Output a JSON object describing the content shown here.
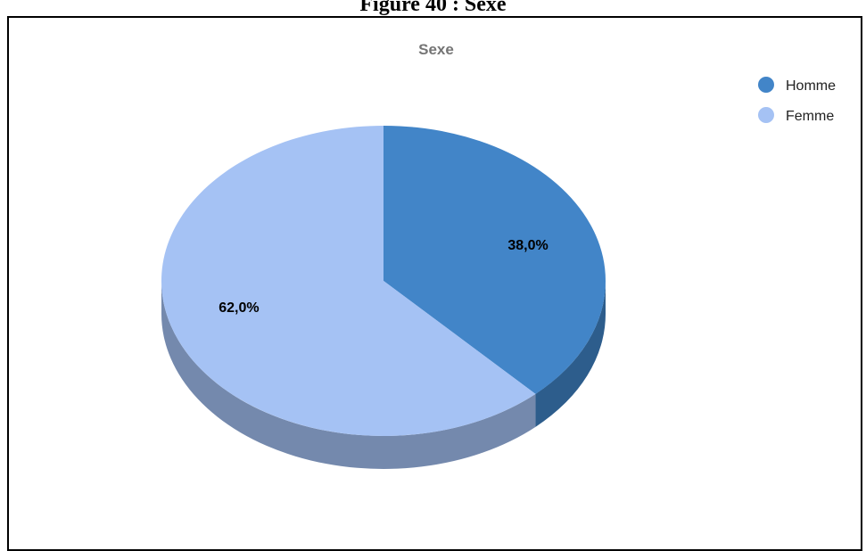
{
  "caption": "Figure 40 : Sexe",
  "chart_data": {
    "type": "pie",
    "title": "Sexe",
    "legend_position": "top-right",
    "three_d": true,
    "slices": [
      {
        "label": "Homme",
        "value": 38.0,
        "display": "38,0%",
        "color": "#4285c8",
        "side_color": "#2d5d8c"
      },
      {
        "label": "Femme",
        "value": 62.0,
        "display": "62,0%",
        "color": "#a5c2f4",
        "side_color": "#7489ad"
      }
    ]
  }
}
